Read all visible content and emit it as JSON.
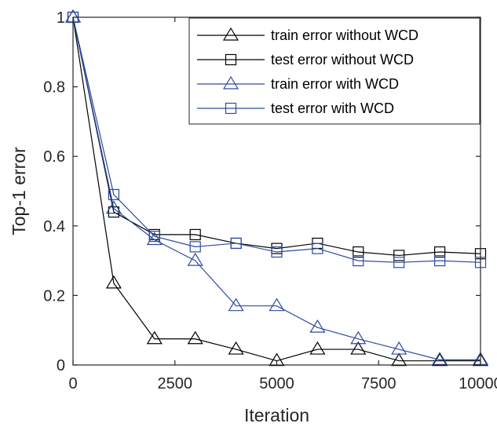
{
  "chart_data": {
    "type": "line",
    "title": "",
    "xlabel": "Iteration",
    "ylabel": "Top-1 error",
    "xlim": [
      0,
      10000
    ],
    "ylim": [
      0,
      1
    ],
    "xticks": [
      0,
      2500,
      5000,
      7500,
      10000
    ],
    "xtick_labels": [
      "0",
      "2500",
      "5000",
      "7500",
      "10000"
    ],
    "yticks": [
      0,
      0.2,
      0.4,
      0.6,
      0.8,
      1
    ],
    "ytick_labels": [
      "0",
      "0.2",
      "0.4",
      "0.6",
      "0.8",
      "1"
    ],
    "grid": false,
    "legend_position": "top-right",
    "x": [
      0,
      1000,
      2000,
      3000,
      4000,
      5000,
      6000,
      7000,
      8000,
      9000,
      10000
    ],
    "series": [
      {
        "name": "train error without WCD",
        "color": "#000000",
        "marker": "triangle",
        "values": [
          1.0,
          0.235,
          0.075,
          0.075,
          0.045,
          0.012,
          0.045,
          0.045,
          0.012,
          0.012,
          0.012
        ]
      },
      {
        "name": "test error without WCD",
        "color": "#000000",
        "marker": "square",
        "values": [
          1.0,
          0.44,
          0.375,
          0.375,
          0.35,
          0.335,
          0.35,
          0.325,
          0.315,
          0.325,
          0.32
        ]
      },
      {
        "name": "train error with WCD",
        "color": "#2e4a9e",
        "marker": "triangle",
        "values": [
          1.0,
          0.45,
          0.36,
          0.3,
          0.17,
          0.17,
          0.108,
          0.075,
          0.045,
          0.015,
          0.015
        ]
      },
      {
        "name": "test error with WCD",
        "color": "#2e4a9e",
        "marker": "square",
        "values": [
          1.0,
          0.49,
          0.37,
          0.34,
          0.35,
          0.325,
          0.335,
          0.3,
          0.295,
          0.3,
          0.295
        ]
      }
    ]
  }
}
